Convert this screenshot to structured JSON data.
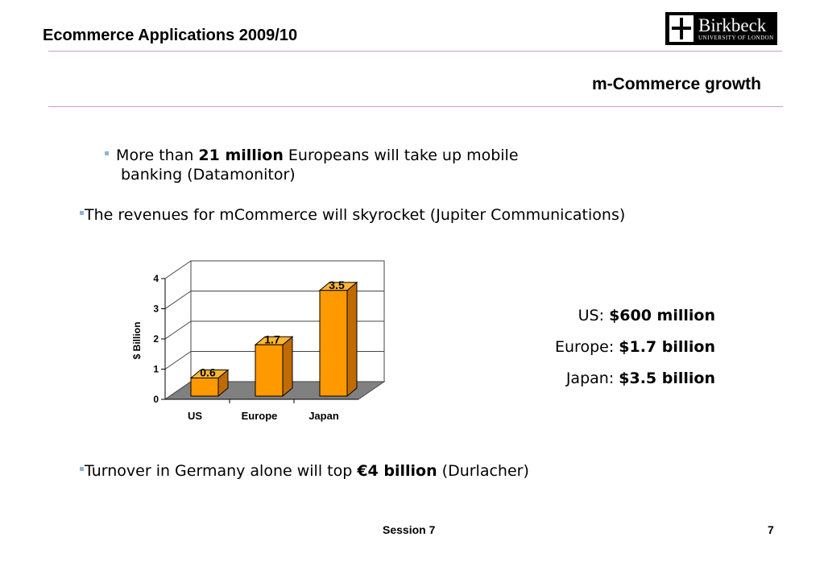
{
  "header": {
    "course_title": "Ecommerce Applications 2009/10"
  },
  "logo": {
    "name": "Birkbeck",
    "subtitle": "UNIVERSITY OF LONDON"
  },
  "slide": {
    "title": "m-Commerce growth"
  },
  "bullets": {
    "mobile_banking": {
      "pre": "More than ",
      "bold": "21 million",
      "post": " Europeans will take up mobile",
      "line2": "banking (Datamonitor)"
    },
    "revenues": {
      "text": "The revenues for mCommerce will skyrocket (Jupiter Communications)"
    },
    "germany": {
      "pre": "Turnover in Germany alone will top ",
      "bold": "€4 billion",
      "post": " (Durlacher)"
    }
  },
  "callouts": [
    {
      "label": "US: ",
      "value": "$600 million"
    },
    {
      "label": "Europe: ",
      "value": "$1.7 billion"
    },
    {
      "label": "Japan: ",
      "value": "$3.5 billion"
    }
  ],
  "chart_data": {
    "type": "bar",
    "categories": [
      "US",
      "Europe",
      "Japan"
    ],
    "values": [
      0.6,
      1.7,
      3.5
    ],
    "data_labels": [
      "0.6",
      "1.7",
      "3.5"
    ],
    "ylabel": "$ Billion",
    "ylim": [
      0,
      4
    ],
    "yticks": [
      "0",
      "1",
      "2",
      "3",
      "4"
    ],
    "grid": true,
    "bar_color": "#ff9900",
    "floor_color": "#808080"
  },
  "footer": {
    "session": "Session 7",
    "page": "7"
  }
}
